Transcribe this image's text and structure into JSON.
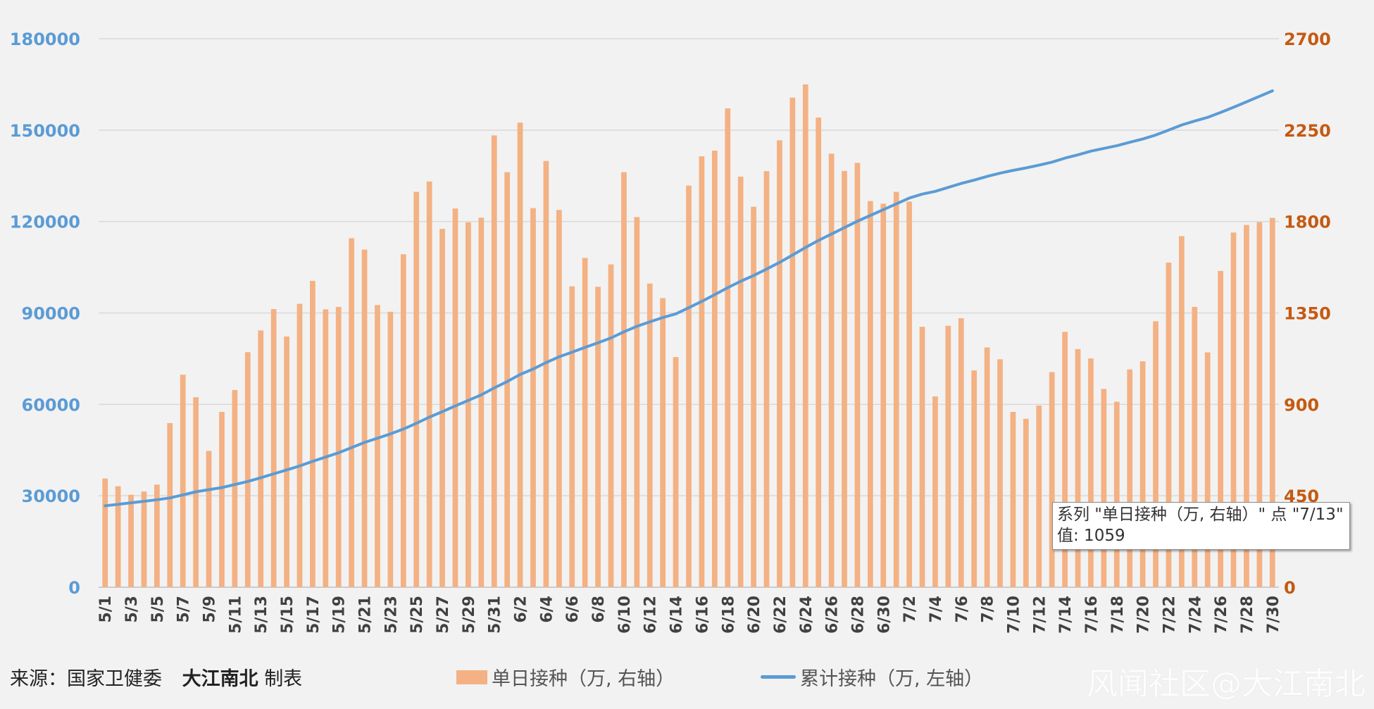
{
  "chart_data": {
    "type": "bar",
    "source_label": "来源：国家卫健委",
    "author_label": "大江南北",
    "author_suffix": "制表",
    "watermark": "风闻社区@大江南北",
    "colors": {
      "bar": "#f4b183",
      "line": "#5b9bd5",
      "left_axis": "#5b9bd5",
      "right_axis": "#c55a11",
      "grid": "#d9d9d9"
    },
    "left_axis": {
      "min": 0,
      "max": 180000,
      "ticks": [
        0,
        30000,
        60000,
        90000,
        120000,
        150000,
        180000
      ]
    },
    "right_axis": {
      "min": 0,
      "max": 2700,
      "ticks": [
        0,
        450,
        900,
        1350,
        1800,
        2250,
        2700
      ]
    },
    "categories": [
      "5/1",
      "5/2",
      "5/3",
      "5/4",
      "5/5",
      "5/6",
      "5/7",
      "5/8",
      "5/9",
      "5/10",
      "5/11",
      "5/12",
      "5/13",
      "5/14",
      "5/15",
      "5/16",
      "5/17",
      "5/18",
      "5/19",
      "5/20",
      "5/21",
      "5/22",
      "5/23",
      "5/24",
      "5/25",
      "5/26",
      "5/27",
      "5/28",
      "5/29",
      "5/30",
      "5/31",
      "6/1",
      "6/2",
      "6/3",
      "6/4",
      "6/5",
      "6/6",
      "6/7",
      "6/8",
      "6/9",
      "6/10",
      "6/11",
      "6/12",
      "6/13",
      "6/14",
      "6/15",
      "6/16",
      "6/17",
      "6/18",
      "6/19",
      "6/20",
      "6/21",
      "6/22",
      "6/23",
      "6/24",
      "6/25",
      "6/26",
      "6/27",
      "6/28",
      "6/29",
      "6/30",
      "7/1",
      "7/2",
      "7/3",
      "7/4",
      "7/5",
      "7/6",
      "7/7",
      "7/8",
      "7/9",
      "7/10",
      "7/11",
      "7/12",
      "7/13",
      "7/14",
      "7/15",
      "7/16",
      "7/17",
      "7/18",
      "7/19",
      "7/20",
      "7/21",
      "7/22",
      "7/23",
      "7/24",
      "7/25",
      "7/26",
      "7/27",
      "7/28",
      "7/29",
      "7/30"
    ],
    "x_tick_labels": [
      "5/1",
      "5/3",
      "5/5",
      "5/7",
      "5/9",
      "5/11",
      "5/13",
      "5/15",
      "5/17",
      "5/19",
      "5/21",
      "5/23",
      "5/25",
      "5/27",
      "5/29",
      "5/31",
      "6/2",
      "6/4",
      "6/6",
      "6/8",
      "6/10",
      "6/12",
      "6/14",
      "6/16",
      "6/18",
      "6/20",
      "6/22",
      "6/24",
      "6/26",
      "6/28",
      "6/30",
      "7/2",
      "7/4",
      "7/6",
      "7/8",
      "7/10",
      "7/12",
      "7/14",
      "7/16",
      "7/18",
      "7/20",
      "7/22",
      "7/24",
      "7/26",
      "7/28",
      "7/30"
    ],
    "series": [
      {
        "name": "单日接种（万，右轴）",
        "type": "bar",
        "axis": "right",
        "values": [
          535,
          497,
          455,
          471,
          505,
          808,
          1046,
          935,
          671,
          863,
          971,
          1157,
          1264,
          1369,
          1234,
          1395,
          1508,
          1368,
          1380,
          1718,
          1662,
          1389,
          1356,
          1639,
          1946,
          1997,
          1764,
          1864,
          1796,
          1819,
          2224,
          2043,
          2287,
          1866,
          2098,
          1857,
          1481,
          1621,
          1479,
          1589,
          2043,
          1822,
          1495,
          1423,
          1133,
          1977,
          2121,
          2149,
          2357,
          2021,
          1873,
          2048,
          2200,
          2410,
          2475,
          2312,
          2134,
          2049,
          2089,
          1901,
          1888,
          1946,
          1898,
          1282,
          939,
          1287,
          1324,
          1067,
          1180,
          1122,
          863,
          829,
          894,
          1059,
          1257,
          1172,
          1126,
          976,
          913,
          1072,
          1112,
          1309,
          1598,
          1728,
          1380,
          1156,
          1557,
          1746,
          1783,
          1797,
          1818
        ]
      },
      {
        "name": "累计接种（万，左轴）",
        "type": "line",
        "axis": "left",
        "values": [
          26700,
          27200,
          27700,
          28200,
          28700,
          29300,
          30300,
          31300,
          32000,
          32700,
          33700,
          34700,
          35900,
          37200,
          38500,
          39800,
          41300,
          42700,
          44100,
          45800,
          47500,
          48900,
          50300,
          51900,
          53800,
          55800,
          57600,
          59500,
          61300,
          63100,
          65400,
          67500,
          69800,
          71600,
          73700,
          75600,
          77100,
          78700,
          80200,
          81800,
          83800,
          85600,
          87100,
          88500,
          89700,
          91700,
          93800,
          96000,
          98300,
          100400,
          102300,
          104400,
          106600,
          109000,
          111500,
          113800,
          115900,
          118000,
          120100,
          122000,
          123900,
          125800,
          127700,
          129000,
          129900,
          131200,
          132500,
          133600,
          134800,
          135900,
          136800,
          137600,
          138500,
          139500,
          140800,
          141900,
          143100,
          144000,
          144900,
          146000,
          147100,
          148400,
          150000,
          151700,
          153000,
          154200,
          155800,
          157500,
          159300,
          161100,
          162900
        ]
      }
    ],
    "tooltip": {
      "line1": "系列 \"单日接种（万, 右轴）\" 点 \"7/13\"",
      "line2": "值: 1059"
    }
  },
  "legend": {
    "bar_label": "单日接种（万, 右轴）",
    "line_label": "累计接种（万, 左轴）"
  }
}
